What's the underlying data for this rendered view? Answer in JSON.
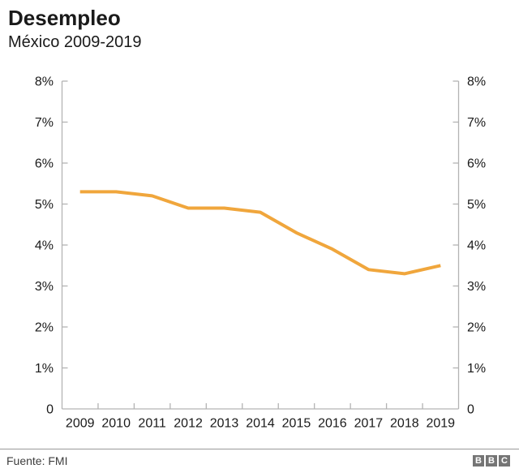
{
  "header": {
    "title": "Desempleo",
    "subtitle": "México 2009-2019"
  },
  "chart_data": {
    "type": "line",
    "title": "Desempleo",
    "subtitle": "México 2009-2019",
    "categories": [
      "2009",
      "2010",
      "2011",
      "2012",
      "2013",
      "2014",
      "2015",
      "2016",
      "2017",
      "2018",
      "2019"
    ],
    "series": [
      {
        "name": "Desempleo México (%)",
        "values": [
          5.3,
          5.3,
          5.2,
          4.9,
          4.9,
          4.8,
          4.3,
          3.9,
          3.4,
          3.3,
          3.5
        ]
      }
    ],
    "unit": "%",
    "ylim": [
      0,
      8
    ],
    "y_ticks": [
      0,
      1,
      2,
      3,
      4,
      5,
      6,
      7,
      8
    ],
    "y_tick_labels": [
      "0",
      "1%",
      "2%",
      "3%",
      "4%",
      "5%",
      "6%",
      "7%",
      "8%"
    ],
    "dual_y_axis": true,
    "grid": false,
    "legend_position": "none",
    "line_color": "#F0A63C",
    "axis_color": "#b3b3b3",
    "label_color": "#1a1a1a"
  },
  "footer": {
    "source": "Fuente: FMI",
    "logo": {
      "letters": [
        "B",
        "B",
        "C"
      ],
      "block_color": "#757575",
      "letter_color": "#ffffff"
    }
  }
}
